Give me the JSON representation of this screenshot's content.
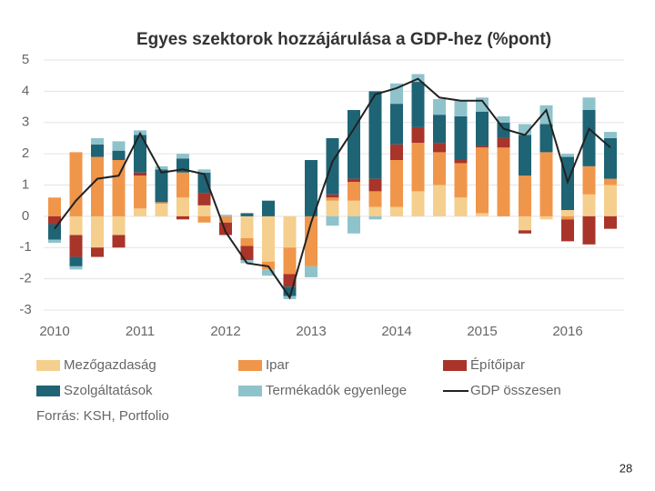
{
  "chart_data": {
    "type": "bar",
    "title": "Egyes szektorok hozzájárulása a GDP-hez (%pont)",
    "categories": [
      "2010",
      null,
      null,
      null,
      "2011",
      null,
      null,
      null,
      "2012",
      null,
      null,
      null,
      "2013",
      null,
      null,
      null,
      "2014",
      null,
      null,
      null,
      "2015",
      null,
      null,
      null,
      "2016",
      null,
      null
    ],
    "series": [
      {
        "name": "Mezőgazdaság",
        "color": "#f5cf8e",
        "values": [
          0,
          -0.6,
          -1.0,
          -0.6,
          0.25,
          0.4,
          0.6,
          0.35,
          0,
          -0.7,
          -1.45,
          -1.0,
          0,
          0.5,
          0.5,
          0.3,
          0.3,
          0.8,
          1.0,
          0.6,
          0.1,
          0,
          -0.45,
          -0.1,
          0.2,
          0.7,
          1.0
        ]
      },
      {
        "name": "Ipar",
        "color": "#f0964a",
        "values": [
          0.6,
          2.05,
          1.9,
          1.8,
          1.05,
          0.05,
          0.8,
          -0.2,
          -0.2,
          -0.25,
          -0.25,
          -0.85,
          -1.6,
          0.1,
          0.6,
          0.5,
          1.5,
          1.55,
          1.05,
          1.1,
          2.1,
          2.2,
          1.3,
          2.05,
          -0.1,
          0.9,
          0.2
        ]
      },
      {
        "name": "Építőipar",
        "color": "#a8342a",
        "values": [
          -0.25,
          -0.7,
          -0.3,
          -0.4,
          0.1,
          0,
          -0.1,
          0.4,
          -0.4,
          -0.45,
          0,
          -0.4,
          0,
          0.1,
          0.1,
          0.4,
          0.5,
          0.5,
          0.3,
          0.1,
          0.05,
          0.3,
          -0.1,
          0,
          -0.7,
          -0.9,
          -0.4
        ]
      },
      {
        "name": "Szolgáltatások",
        "color": "#1f6475",
        "values": [
          -0.5,
          -0.3,
          0.4,
          0.3,
          1.2,
          1.05,
          0.45,
          0.65,
          0,
          0.1,
          0.5,
          -0.3,
          1.8,
          1.8,
          2.2,
          2.8,
          1.3,
          1.45,
          0.9,
          1.4,
          1.1,
          0.5,
          1.3,
          0.9,
          1.7,
          1.8,
          1.3
        ]
      },
      {
        "name": "Termékadók egyenlege",
        "color": "#8fc3cc",
        "values": [
          -0.1,
          -0.1,
          0.2,
          0.3,
          0.15,
          0.1,
          0.15,
          0.1,
          0.05,
          -0.1,
          -0.2,
          -0.1,
          -0.35,
          -0.3,
          -0.55,
          -0.1,
          0.65,
          0.25,
          0.5,
          0.5,
          0.45,
          0.2,
          0.35,
          0.6,
          0.1,
          0.4,
          0.2
        ]
      },
      {
        "name": "GDP összesen",
        "type": "line",
        "color": "#222222",
        "values": [
          -0.4,
          0.5,
          1.2,
          1.3,
          2.65,
          1.4,
          1.5,
          1.35,
          -0.5,
          -1.5,
          -1.6,
          -2.6,
          -0.2,
          1.75,
          2.8,
          3.9,
          4.1,
          4.4,
          3.8,
          3.7,
          3.7,
          2.8,
          2.6,
          3.4,
          1.1,
          2.8,
          2.2
        ]
      }
    ],
    "ylim": [
      -3,
      5
    ],
    "yticks": [
      -3,
      -2,
      -1,
      0,
      1,
      2,
      3,
      4,
      5
    ],
    "grid": true,
    "source": "Forrás: KSH, Portfolio"
  },
  "page_number": "28"
}
